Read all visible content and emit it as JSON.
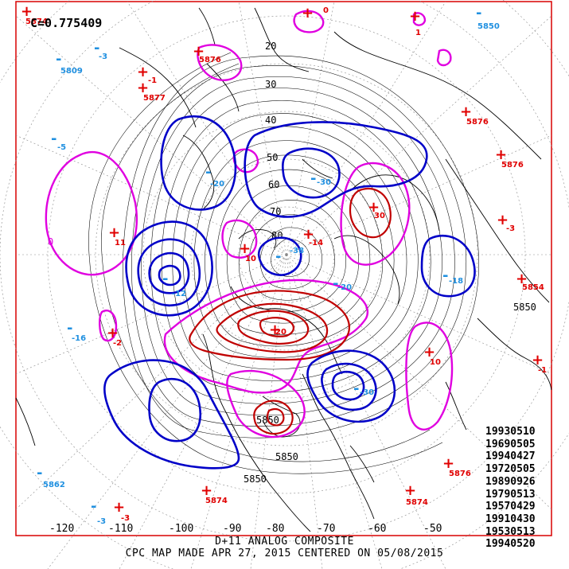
{
  "correlation": "C=0.775409",
  "footer": {
    "line1": "D+11 ANALOG COMPOSITE",
    "line2": "CPC MAP MADE APR 27, 2015 CENTERED ON 05/08/2015"
  },
  "analog_dates": [
    "19930510",
    "19690505",
    "19940427",
    "19720505",
    "19890926",
    "19790513",
    "19570429",
    "19910430",
    "19530513",
    "19940520"
  ],
  "longitude_labels": [
    "-120",
    "-110",
    "-100",
    "-90",
    "-80",
    "-70",
    "-60",
    "-50"
  ],
  "latitude_labels": [
    "20",
    "30",
    "40",
    "50",
    "60",
    "70",
    "80"
  ],
  "height_labels": [
    "5850",
    "5850",
    "5850",
    "5850"
  ],
  "zero_label": "0",
  "highs": [
    {
      "symbol": "+",
      "value": "5874"
    },
    {
      "symbol": "+",
      "value": "0"
    },
    {
      "symbol": "+",
      "value": "1"
    },
    {
      "symbol": "+",
      "value": "-1"
    },
    {
      "symbol": "+",
      "value": "5877"
    },
    {
      "symbol": "+",
      "value": "5876"
    },
    {
      "symbol": "+",
      "value": "5876"
    },
    {
      "symbol": "+",
      "value": "5876"
    },
    {
      "symbol": "+",
      "value": "-3"
    },
    {
      "symbol": "+",
      "value": "5854"
    },
    {
      "symbol": "+",
      "value": "-1"
    },
    {
      "symbol": "+",
      "value": "11"
    },
    {
      "symbol": "+",
      "value": "-2"
    },
    {
      "symbol": "+",
      "value": "10"
    },
    {
      "symbol": "+",
      "value": "5876"
    },
    {
      "symbol": "+",
      "value": "5874"
    },
    {
      "symbol": "+",
      "value": "5874"
    },
    {
      "symbol": "+",
      "value": "-3"
    },
    {
      "symbol": "+",
      "value": "-14"
    },
    {
      "symbol": "+",
      "value": "20"
    },
    {
      "symbol": "+",
      "value": "10"
    },
    {
      "symbol": "+",
      "value": "30"
    }
  ],
  "lows": [
    {
      "symbol": "-",
      "value": "5850"
    },
    {
      "symbol": "-",
      "value": "5809"
    },
    {
      "symbol": "-",
      "value": "-3"
    },
    {
      "symbol": "-",
      "value": "-5"
    },
    {
      "symbol": "-",
      "value": "-16"
    },
    {
      "symbol": "-",
      "value": "5862"
    },
    {
      "symbol": "-",
      "value": "-3"
    },
    {
      "symbol": "-",
      "value": "-12"
    },
    {
      "symbol": "-",
      "value": "-38"
    },
    {
      "symbol": "-",
      "value": "-30"
    },
    {
      "symbol": "-",
      "value": "-20"
    },
    {
      "symbol": "-",
      "value": "-18"
    },
    {
      "symbol": "-",
      "value": "-20"
    },
    {
      "symbol": "-",
      "value": "-30"
    }
  ]
}
